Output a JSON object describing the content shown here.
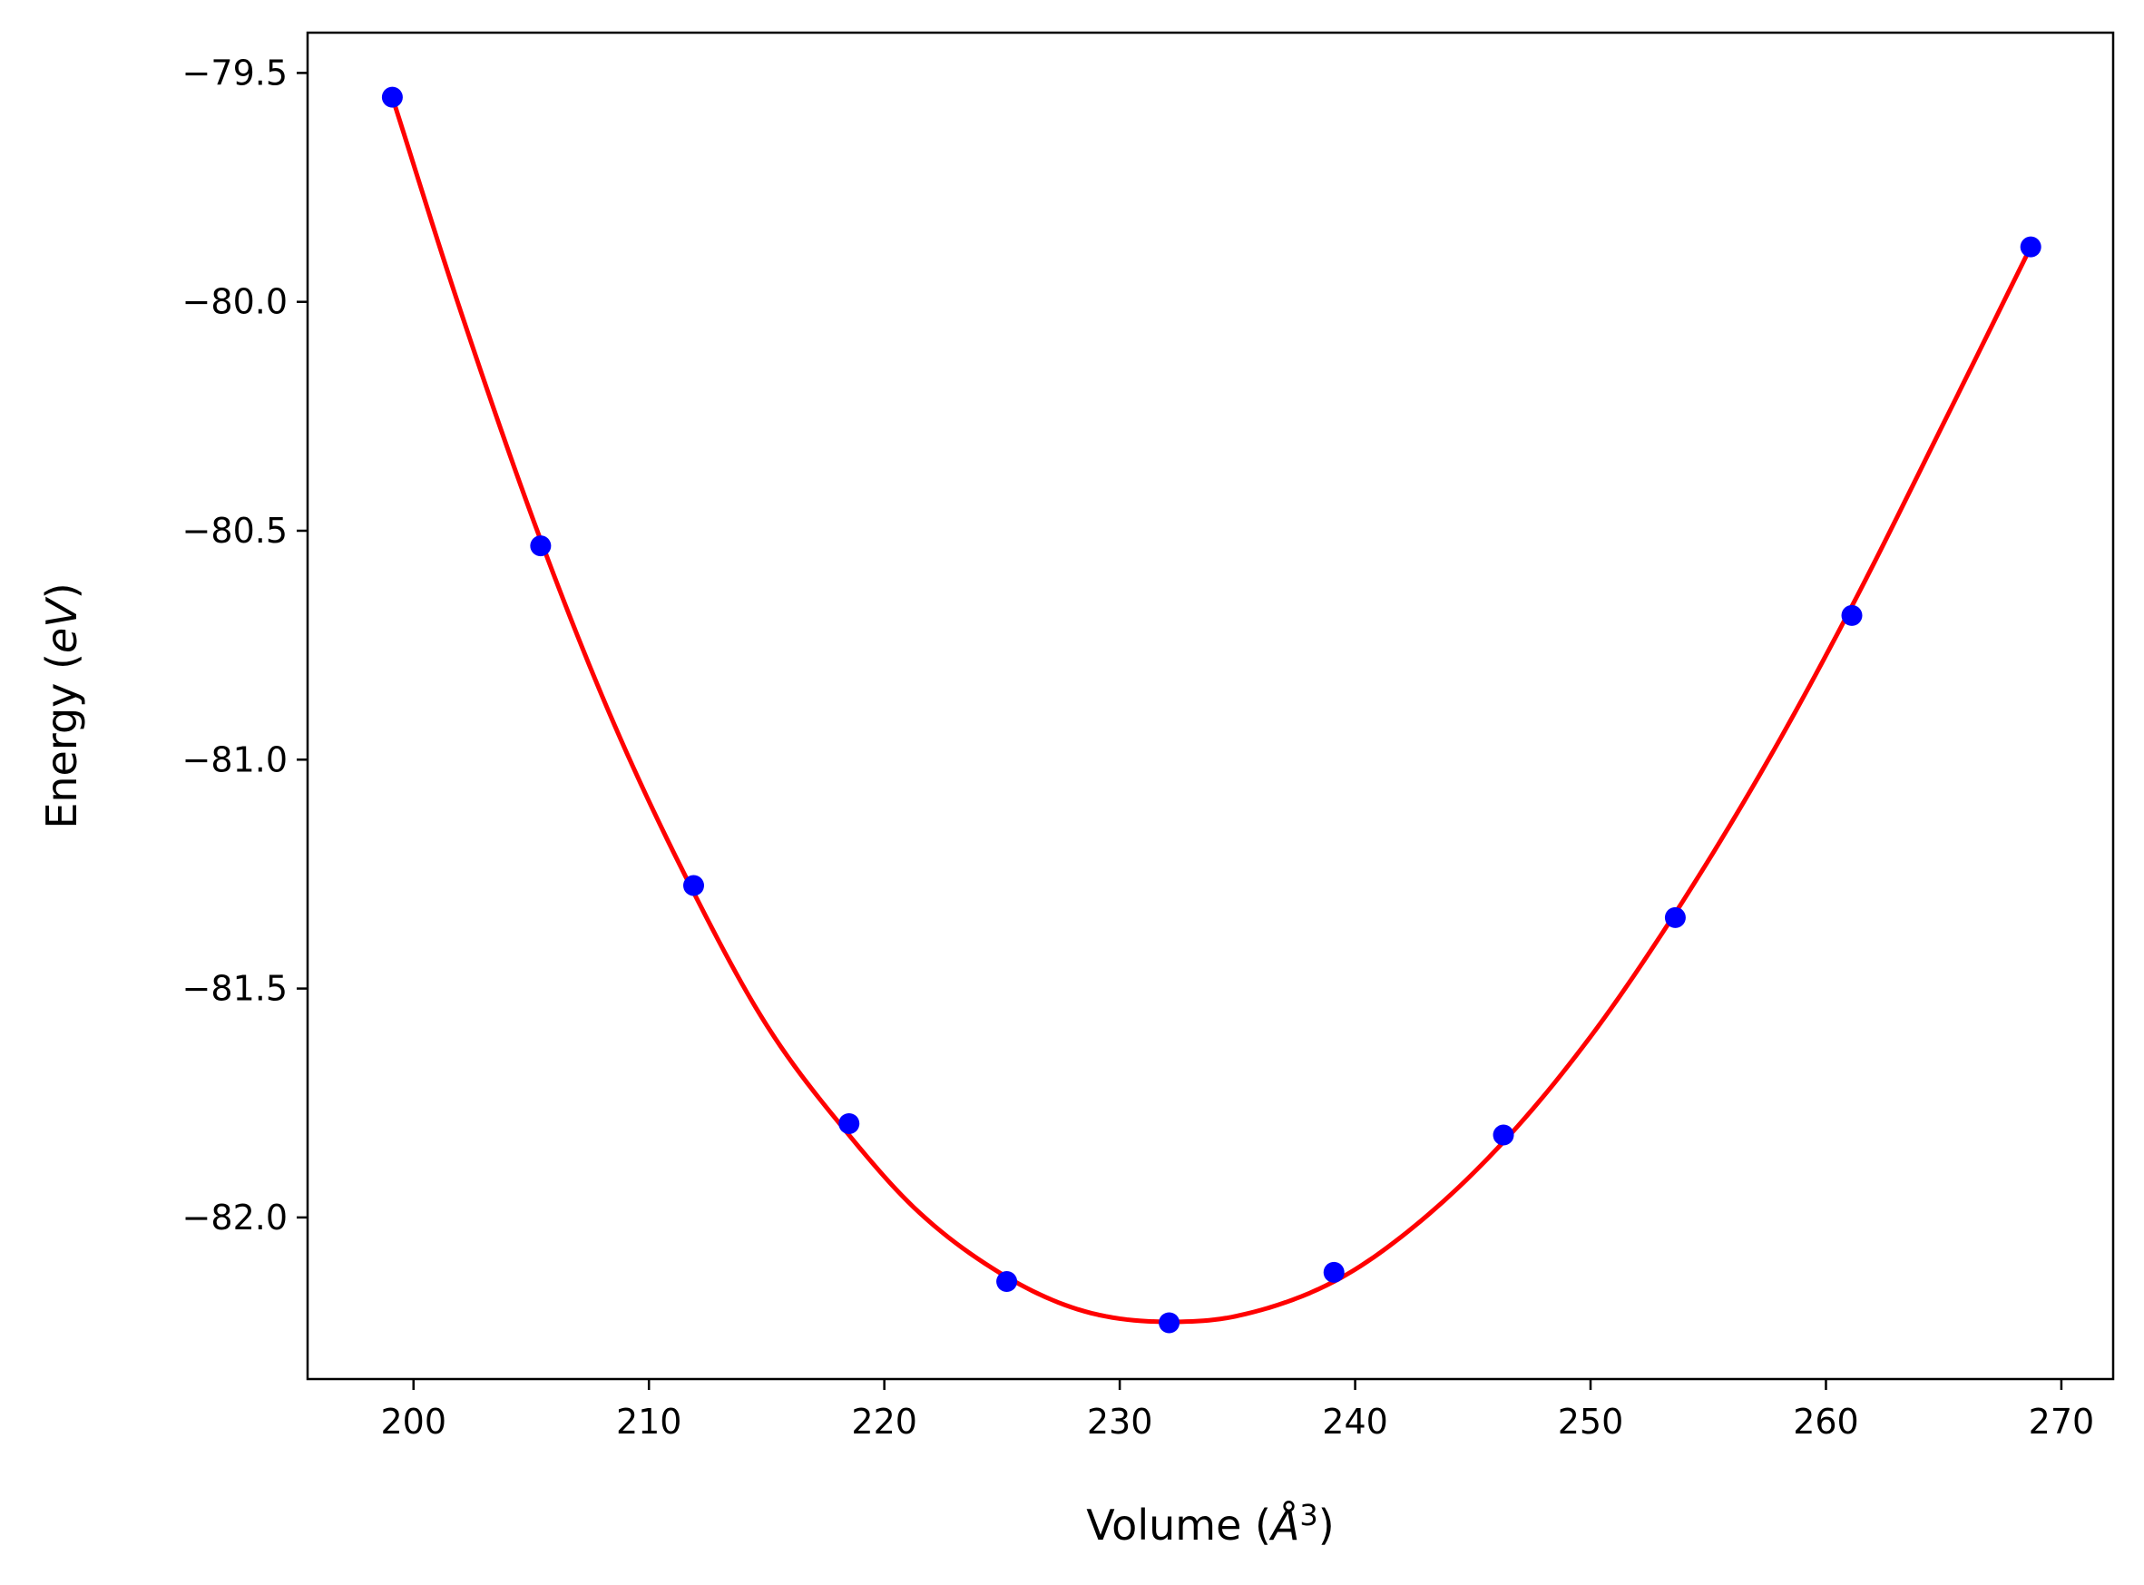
{
  "chart_data": {
    "type": "scatter",
    "title": "",
    "xlabel": "Volume ($\\AA^3$)",
    "ylabel": "Energy ($eV$)",
    "xlabel_parts": {
      "pre": "Volume (",
      "unit": "Å",
      "exp": "3",
      "post": ")"
    },
    "ylabel_parts": {
      "pre": "Energy (",
      "unit": "eV",
      "post": ")"
    },
    "xlim": [
      195.5,
      272.2
    ],
    "ylim": [
      -82.353,
      -79.412
    ],
    "xticks": [
      200,
      210,
      220,
      230,
      240,
      250,
      260,
      270
    ],
    "xtick_labels": [
      "200",
      "210",
      "220",
      "230",
      "240",
      "250",
      "260",
      "270"
    ],
    "yticks": [
      -82.0,
      -81.5,
      -81.0,
      -80.5,
      -80.0,
      -79.5
    ],
    "ytick_labels": [
      "−82.0",
      "−81.5",
      "−81.0",
      "−80.5",
      "−80.0",
      "−79.5"
    ],
    "grid": false,
    "legend": "none",
    "series": [
      {
        "kind": "points",
        "color": "#0000ff",
        "x": [
          199.1,
          205.4,
          211.9,
          218.5,
          225.2,
          232.1,
          239.1,
          246.3,
          253.6,
          261.1,
          268.7
        ],
        "y": [
          -79.553,
          -80.533,
          -81.275,
          -81.795,
          -82.14,
          -82.23,
          -82.12,
          -81.82,
          -81.345,
          -80.685,
          -79.88
        ]
      },
      {
        "kind": "fit-curve",
        "color": "#ff0000",
        "x": [
          199.1,
          202.0,
          205.4,
          208.5,
          211.9,
          215.0,
          218.5,
          221.5,
          225.2,
          228.5,
          232.1,
          235.0,
          239.1,
          242.5,
          246.3,
          250.0,
          253.6,
          257.5,
          261.1,
          265.0,
          268.7
        ],
        "y": [
          -79.553,
          -80.02,
          -80.52,
          -80.92,
          -81.29,
          -81.58,
          -81.82,
          -81.99,
          -82.13,
          -82.205,
          -82.228,
          -82.215,
          -82.14,
          -82.02,
          -81.835,
          -81.605,
          -81.335,
          -81.005,
          -80.665,
          -80.265,
          -79.88
        ]
      }
    ]
  }
}
